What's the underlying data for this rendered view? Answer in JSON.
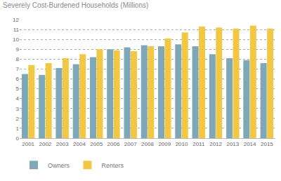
{
  "chart_data": {
    "type": "bar",
    "title": "Severely Cost-Burdened Households (Millions)",
    "categories": [
      "2001",
      "2002",
      "2003",
      "2004",
      "2005",
      "2006",
      "2007",
      "2008",
      "2009",
      "2010",
      "2011",
      "2012",
      "2013",
      "2014",
      "2015"
    ],
    "series": [
      {
        "name": "Owners",
        "color": "#7ea7b8",
        "values": [
          6.5,
          6.4,
          7.1,
          7.5,
          8.2,
          9.0,
          9.2,
          9.4,
          9.3,
          9.5,
          9.3,
          8.5,
          8.1,
          7.9,
          7.6
        ]
      },
      {
        "name": "Renters",
        "color": "#f2c744",
        "values": [
          7.4,
          7.6,
          8.1,
          8.5,
          9.0,
          8.9,
          8.8,
          9.3,
          10.1,
          10.7,
          11.3,
          11.2,
          11.1,
          11.4,
          11.1
        ]
      }
    ],
    "ylim": [
      0,
      12
    ],
    "yticks": [
      0,
      1,
      2,
      3,
      4,
      5,
      6,
      7,
      8,
      9,
      10,
      11,
      12
    ],
    "grid": true,
    "legend": "bottom"
  }
}
